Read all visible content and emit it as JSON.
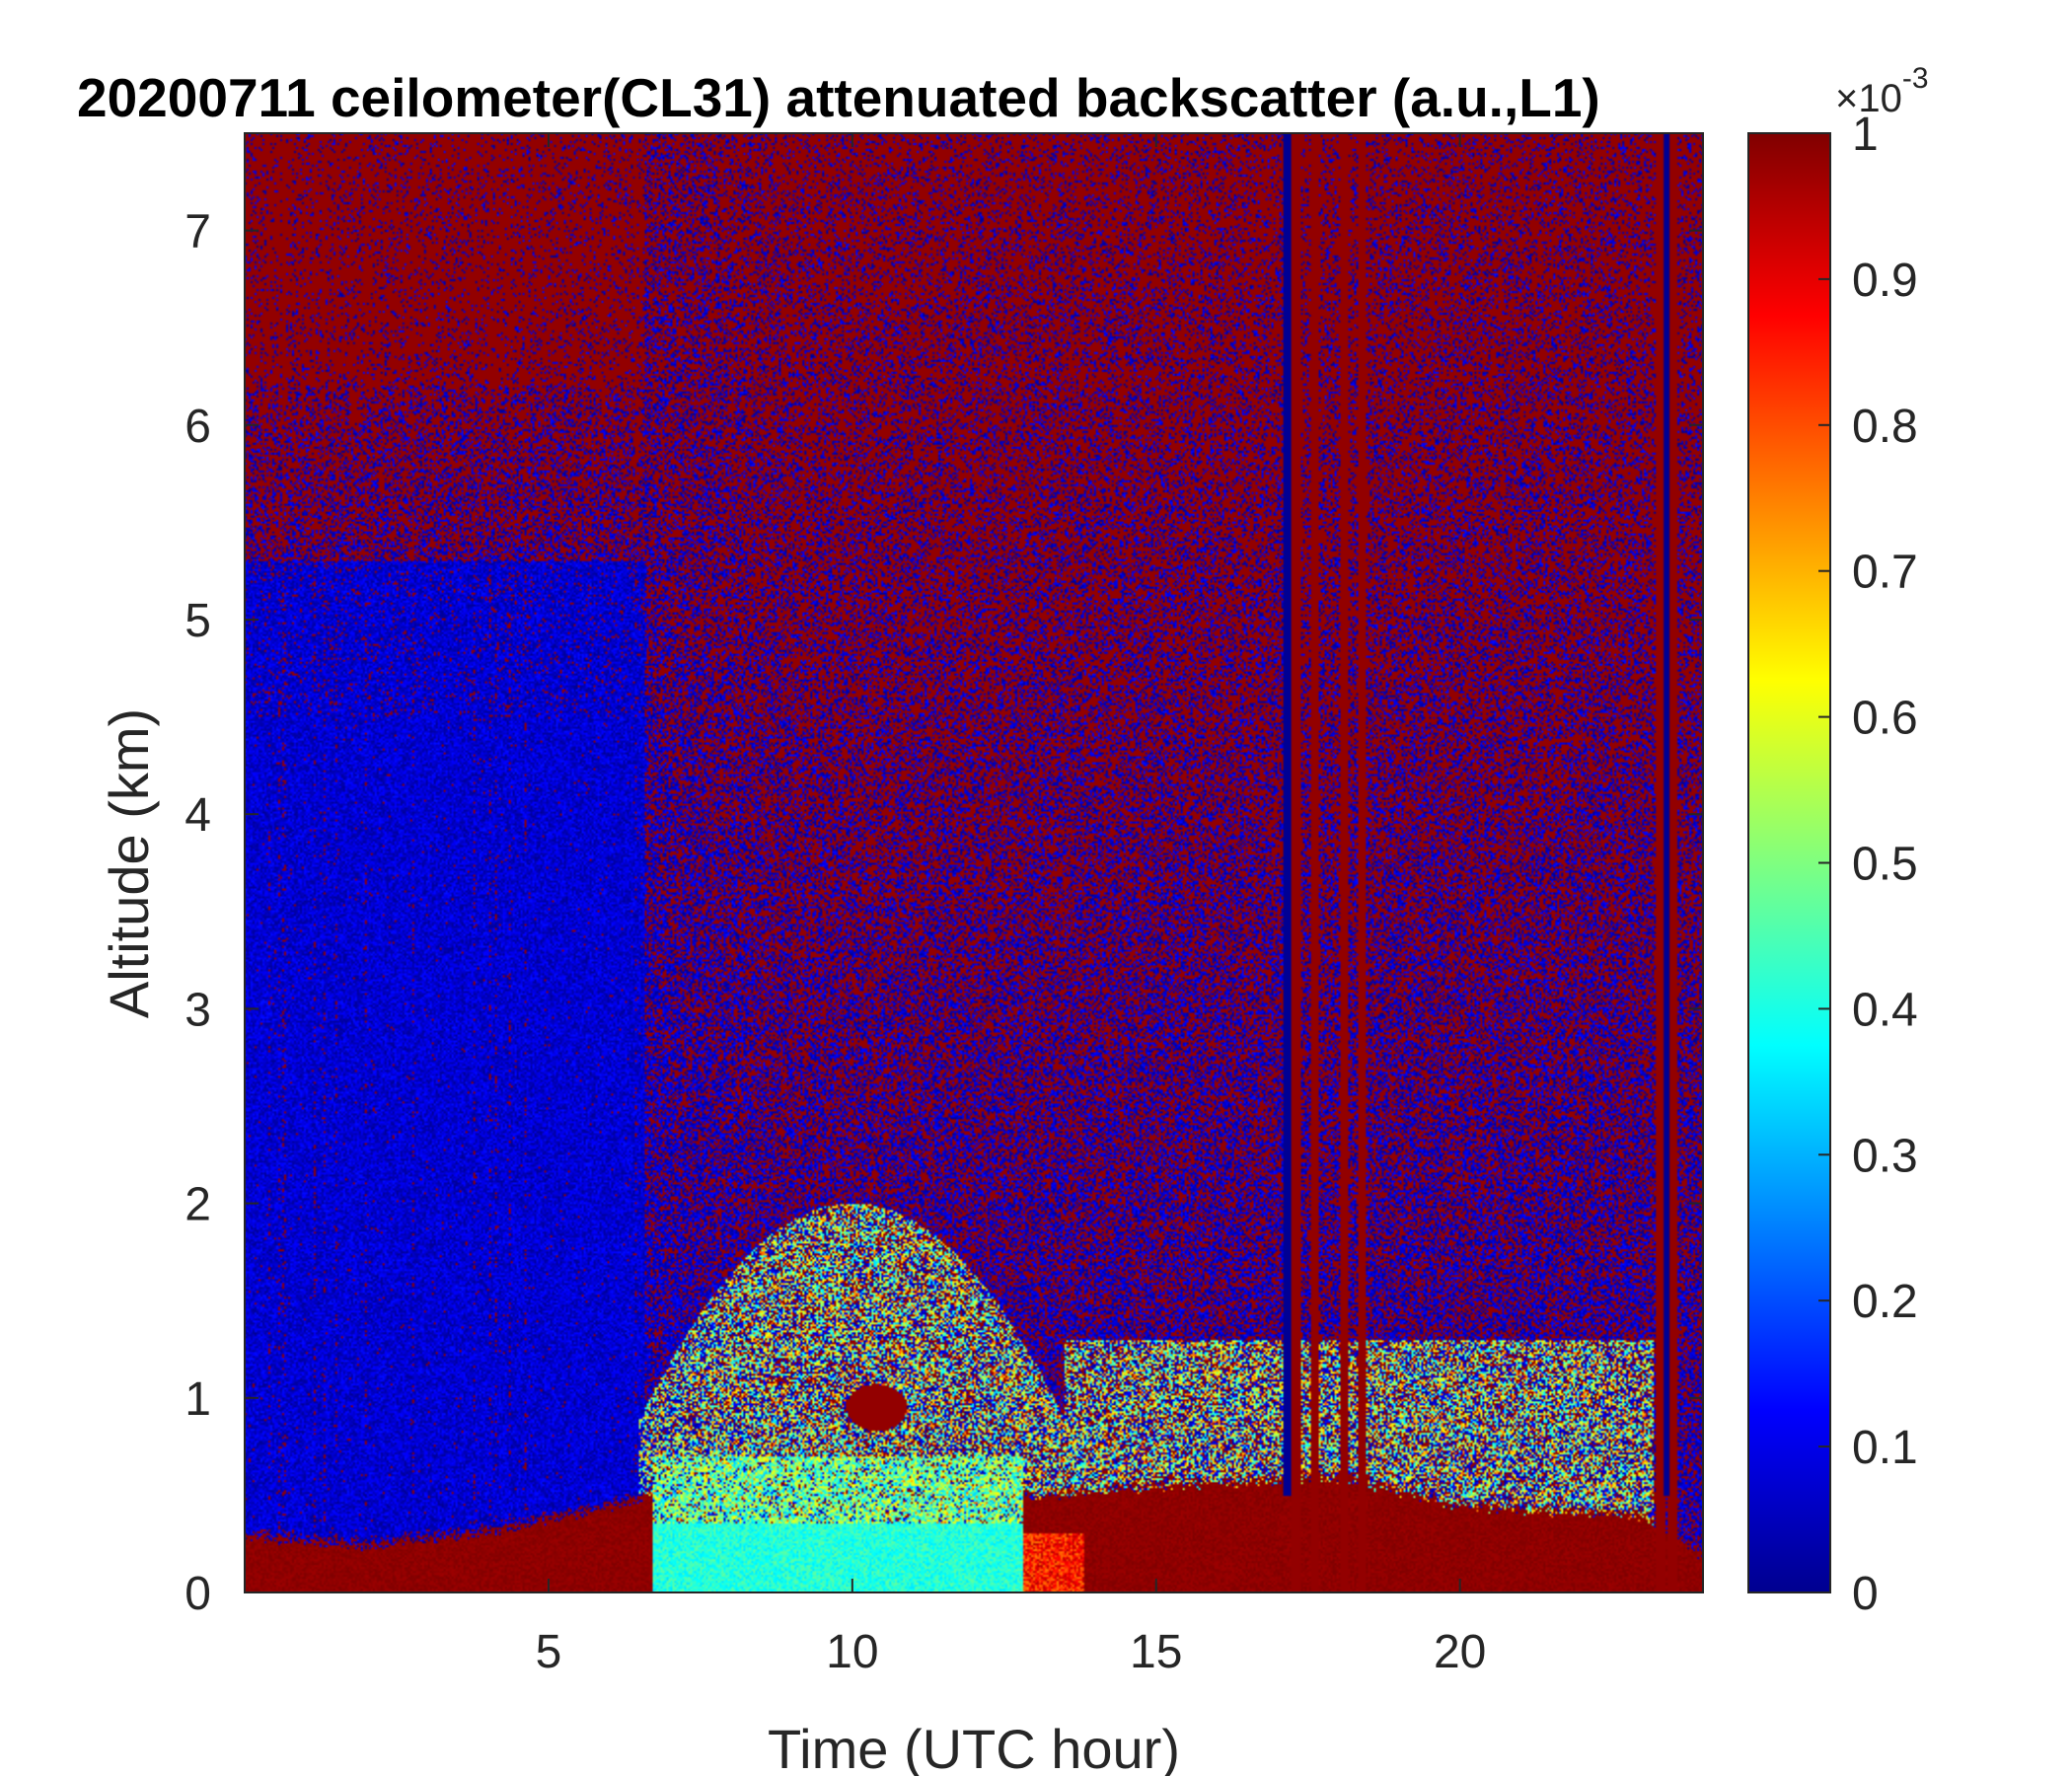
{
  "chart_data": {
    "type": "heatmap",
    "title": "20200711 ceilometer(CL31) attenuated backscatter (a.u.,L1)",
    "xlabel": "Time (UTC hour)",
    "ylabel": "Altitude (km)",
    "xlim": [
      0,
      24
    ],
    "ylim": [
      0,
      7.5
    ],
    "xticks": [
      5,
      10,
      15,
      20
    ],
    "yticks": [
      0,
      1,
      2,
      3,
      4,
      5,
      6,
      7
    ],
    "colorbar": {
      "colormap": "jet",
      "range": [
        0,
        0.001
      ],
      "ticks": [
        0,
        0.1,
        0.2,
        0.3,
        0.4,
        0.5,
        0.6,
        0.7,
        0.8,
        0.9,
        1
      ],
      "multiplier_base": "×10",
      "multiplier_exponent": "-3"
    },
    "features": {
      "surface_aerosol_layer_top_km": [
        {
          "x": 0,
          "y": 0.3
        },
        {
          "x": 2,
          "y": 0.25
        },
        {
          "x": 4,
          "y": 0.32
        },
        {
          "x": 6,
          "y": 0.45
        },
        {
          "x": 6.6,
          "y": 0.5
        },
        {
          "x": 13,
          "y": 0.5
        },
        {
          "x": 15,
          "y": 0.55
        },
        {
          "x": 18,
          "y": 0.6
        },
        {
          "x": 20,
          "y": 0.45
        },
        {
          "x": 23,
          "y": 0.4
        },
        {
          "x": 24,
          "y": 0.2
        }
      ],
      "boundary_layer_cyan_region": {
        "x_start": 6.7,
        "x_end": 12.8,
        "y_top_km": 0.35
      },
      "aerosol_dome": {
        "x_start": 6.5,
        "x_end": 13.5,
        "y_top_km": 1.6
      },
      "rain_streaks_hours": [
        17.3,
        17.6,
        18.1,
        18.4,
        23.3,
        23.5
      ],
      "blue_clear_streaks_hours": [
        17.15,
        23.4
      ],
      "high_noise_top_km": 5.3,
      "cloud_blob": {
        "x": 10.4,
        "y": 0.95
      }
    }
  }
}
